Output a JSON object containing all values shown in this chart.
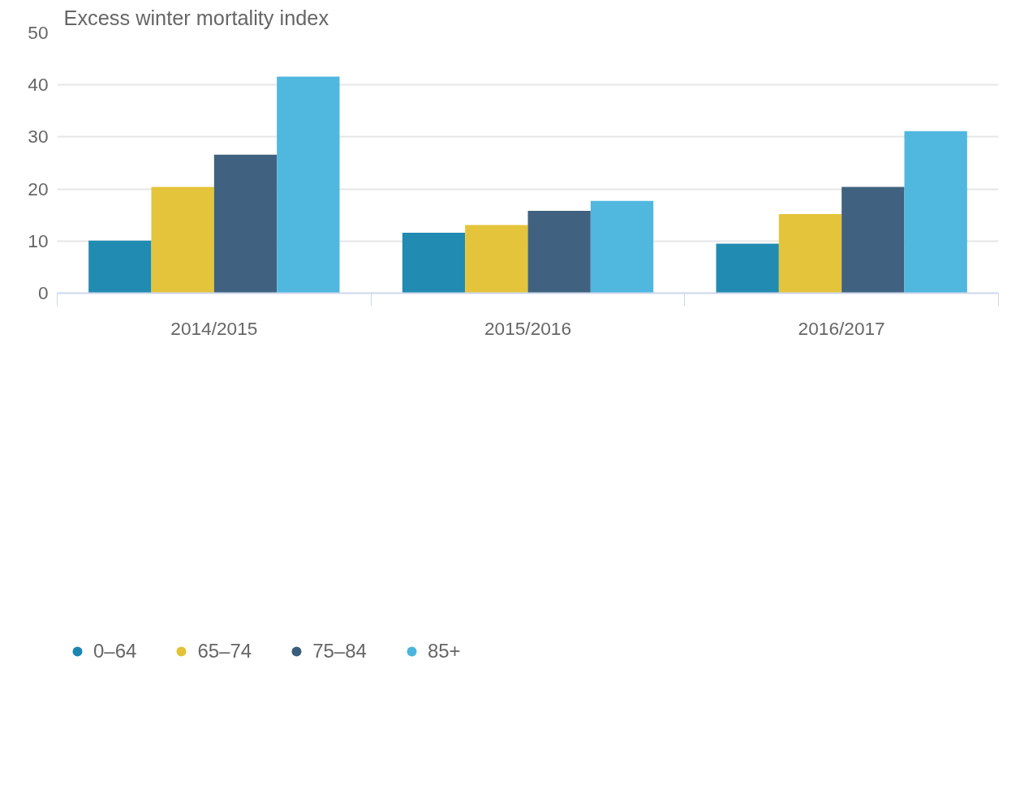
{
  "chart_data": {
    "type": "bar",
    "ylabel": "Excess winter mortality index",
    "categories": [
      "2014/2015",
      "2015/2016",
      "2016/2017"
    ],
    "series": [
      {
        "name": "0–64",
        "color": "#1a87ae",
        "values": [
          10.1,
          11.6,
          9.5
        ]
      },
      {
        "name": "65–74",
        "color": "#e3c234",
        "values": [
          20.4,
          13.1,
          15.2
        ]
      },
      {
        "name": "75–84",
        "color": "#3a5d7c",
        "values": [
          26.6,
          15.8,
          20.4
        ]
      },
      {
        "name": "85+",
        "color": "#4ab5de",
        "values": [
          41.6,
          17.7,
          31.1
        ]
      }
    ],
    "ylim": [
      0,
      50
    ],
    "yticks": [
      0,
      10,
      20,
      30,
      40,
      50
    ],
    "grid": "y",
    "legend": "bottom"
  }
}
